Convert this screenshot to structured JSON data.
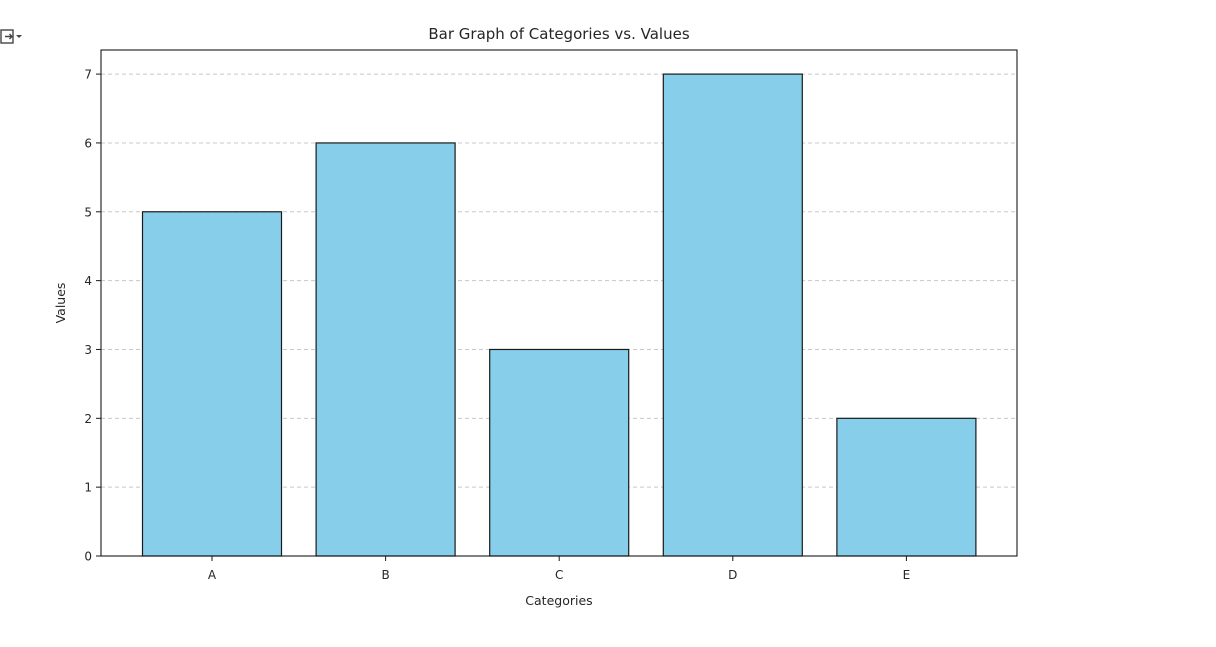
{
  "chart_data": {
    "type": "bar",
    "title": "Bar Graph of Categories vs. Values",
    "xlabel": "Categories",
    "ylabel": "Values",
    "categories": [
      "A",
      "B",
      "C",
      "D",
      "E"
    ],
    "values": [
      5,
      6,
      3,
      7,
      2
    ],
    "ylim": [
      0,
      7.35
    ],
    "yticks": [
      0,
      1,
      2,
      3,
      4,
      5,
      6,
      7
    ],
    "grid": "y-dashed",
    "bar_color": "#87CEEB",
    "edge_color": "#1a1a1a",
    "grid_color": "#c8c8c8"
  },
  "toolbar": {
    "output_icon": "output-toggle-icon"
  }
}
